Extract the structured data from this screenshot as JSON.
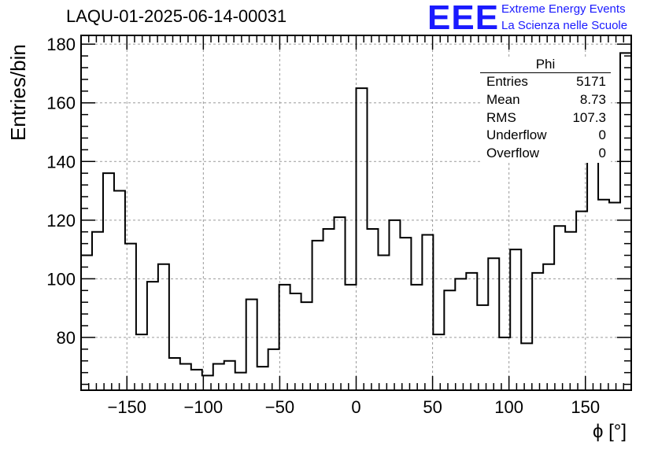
{
  "chart_data": {
    "type": "histogram",
    "title": "LAQU-01-2025-06-14-00031",
    "xlabel": "ϕ [°]",
    "ylabel": "Entries/bin",
    "xlim": [
      -180,
      180
    ],
    "ylim": [
      62,
      183
    ],
    "bin_width": 7.2,
    "xticks": [
      -150,
      -100,
      -50,
      0,
      50,
      100,
      150
    ],
    "xtick_labels": [
      "−150",
      "−100",
      "−50",
      "0",
      "50",
      "100",
      "150"
    ],
    "yticks": [
      80,
      100,
      120,
      140,
      160,
      180
    ],
    "ytick_labels": [
      "80",
      "100",
      "120",
      "140",
      "160",
      "180"
    ],
    "grid": true,
    "values": [
      108,
      116,
      136,
      130,
      112,
      81,
      99,
      105,
      73,
      71,
      69,
      67,
      71,
      72,
      68,
      93,
      70,
      76,
      98,
      95,
      92,
      113,
      117,
      121,
      98,
      165,
      117,
      108,
      120,
      114,
      98,
      115,
      81,
      96,
      100,
      102,
      91,
      107,
      80,
      110,
      78,
      102,
      105,
      118,
      116,
      123,
      144,
      127,
      126,
      177
    ]
  },
  "stats": {
    "title": "Phi",
    "rows": [
      {
        "label": "Entries",
        "value": "5171"
      },
      {
        "label": "Mean",
        "value": "8.73"
      },
      {
        "label": "RMS",
        "value": "107.3"
      },
      {
        "label": "Underflow",
        "value": "0"
      },
      {
        "label": "Overflow",
        "value": "0"
      }
    ]
  },
  "logo": {
    "mark": "EEE",
    "line1": "Extreme Energy Events",
    "line2": "La Scienza nelle Scuole",
    "color": "#1a1aff"
  }
}
